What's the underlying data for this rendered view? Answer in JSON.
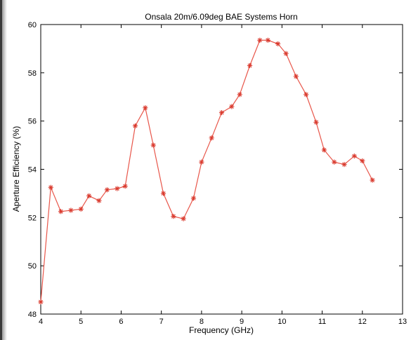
{
  "chart_data": {
    "type": "line",
    "title": "Onsala 20m/6.09deg BAE Systems Horn",
    "xlabel": "Frequency (GHz)",
    "ylabel": "Aperture Efficiency (%)",
    "xlim": [
      4,
      13
    ],
    "ylim": [
      48,
      60
    ],
    "xticks": [
      4,
      5,
      6,
      7,
      8,
      9,
      10,
      11,
      12,
      13
    ],
    "yticks": [
      48,
      50,
      52,
      54,
      56,
      58,
      60
    ],
    "grid": false,
    "marker": "asterisk",
    "colors": {
      "line": "#e8564a",
      "marker": "#d93a2e",
      "axes": "#000000"
    },
    "series": [
      {
        "x": [
          4.0,
          4.25,
          4.5,
          4.75,
          5.0,
          5.2,
          5.45,
          5.65,
          5.9,
          6.1,
          6.35,
          6.6,
          6.8,
          7.05,
          7.3,
          7.55,
          7.8,
          8.0,
          8.25,
          8.5,
          8.75,
          8.95,
          9.2,
          9.45,
          9.65,
          9.9,
          10.1,
          10.35,
          10.6,
          10.85,
          11.05,
          11.3,
          11.55,
          11.8,
          12.0,
          12.25
        ],
        "y": [
          48.5,
          53.25,
          52.25,
          52.3,
          52.35,
          52.9,
          52.7,
          53.15,
          53.2,
          53.3,
          55.8,
          56.55,
          55.0,
          53.0,
          52.05,
          51.95,
          52.8,
          54.3,
          55.3,
          56.35,
          56.6,
          57.1,
          58.3,
          59.35,
          59.35,
          59.2,
          58.8,
          57.85,
          57.1,
          55.95,
          54.8,
          54.3,
          54.2,
          54.55,
          54.35,
          53.55
        ]
      }
    ]
  }
}
